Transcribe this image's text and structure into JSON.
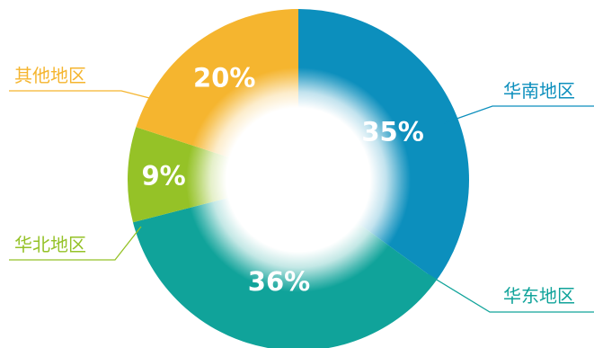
{
  "chart_data": {
    "type": "pie",
    "variant": "donut",
    "title": "",
    "categories": [
      "华南地区",
      "华东地区",
      "华北地区",
      "其他地区"
    ],
    "values": [
      35,
      36,
      9,
      20
    ],
    "value_labels": [
      "35%",
      "36%",
      "9%",
      "20%"
    ],
    "colors": [
      "#0c8fbd",
      "#10a39a",
      "#95c227",
      "#f5b52f"
    ],
    "legend": "callout labels beside each slice"
  }
}
